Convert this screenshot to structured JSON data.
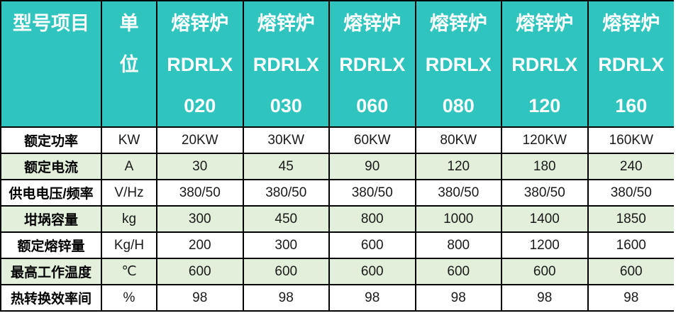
{
  "colors": {
    "header_bg": "#2FC4BD",
    "header_text": "#FFFFFF",
    "alt_row_bg": "#E2EFDA",
    "row_bg": "#FFFFFF",
    "grid_border": "#000000",
    "text": "#1A1A1A"
  },
  "chart_data": {
    "type": "table",
    "columns": [
      "型号项目",
      "单位",
      "熔锌炉 RDRLX 020",
      "熔锌炉 RDRLX 030",
      "熔锌炉 RDRLX 060",
      "熔锌炉 RDRLX 080",
      "熔锌炉 RDRLX 120",
      "熔锌炉 RDRLX 160"
    ],
    "header": {
      "model_item": "型号项目",
      "unit_lines": [
        "单",
        "位"
      ],
      "products": [
        {
          "lines": [
            "熔锌炉",
            "RDRLX",
            "020"
          ]
        },
        {
          "lines": [
            "熔锌炉",
            "RDRLX",
            "030"
          ]
        },
        {
          "lines": [
            "熔锌炉",
            "RDRLX",
            "060"
          ]
        },
        {
          "lines": [
            "熔锌炉",
            "RDRLX",
            "080"
          ]
        },
        {
          "lines": [
            "熔锌炉",
            "RDRLX",
            "120"
          ]
        },
        {
          "lines": [
            "熔锌炉",
            "RDRLX",
            "160"
          ]
        }
      ]
    },
    "rows": [
      {
        "label": "额定功率",
        "unit": "KW",
        "values": [
          "20KW",
          "30KW",
          "60KW",
          "80KW",
          "120KW",
          "160KW"
        ]
      },
      {
        "label": "额定电流",
        "unit": "A",
        "values": [
          "30",
          "45",
          "90",
          "120",
          "180",
          "240"
        ]
      },
      {
        "label": "供电电压/频率",
        "unit": "V/Hz",
        "values": [
          "380/50",
          "380/50",
          "380/50",
          "380/50",
          "380/50",
          "380/50"
        ]
      },
      {
        "label": "坩埚容量",
        "unit": "kg",
        "values": [
          "300",
          "450",
          "800",
          "1000",
          "1400",
          "1850"
        ]
      },
      {
        "label": "额定熔锌量",
        "unit": "Kg/H",
        "values": [
          "200",
          "300",
          "600",
          "800",
          "1200",
          "1600"
        ]
      },
      {
        "label": "最高工作温度",
        "unit": "℃",
        "values": [
          "600",
          "600",
          "600",
          "600",
          "600",
          "600"
        ]
      },
      {
        "label": "热转换效率间",
        "unit": "%",
        "values": [
          "98",
          "98",
          "98",
          "98",
          "98",
          "98"
        ]
      }
    ]
  }
}
